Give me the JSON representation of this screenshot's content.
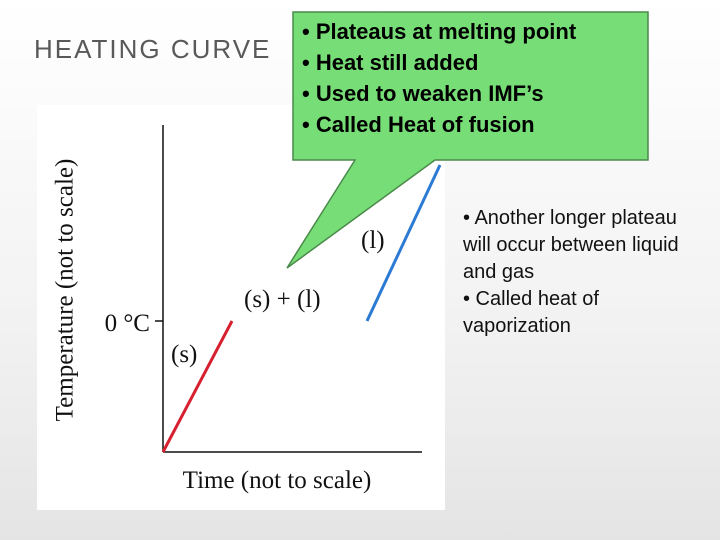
{
  "slide": {
    "title": "HEATING CURVE",
    "callout": [
      "• Plateaus at melting point",
      "• Heat still added",
      "• Used to weaken IMF’s",
      "• Called Heat of fusion"
    ],
    "notes": [
      "• Another longer plateau will occur between liquid and gas",
      "• Called heat of vaporization"
    ],
    "diagram": {
      "y_label": "Temperature (not to scale)",
      "x_label": "Time (not to scale)",
      "tick_label": "0 °C",
      "phase_labels": [
        "(s)",
        "(s) + (l)",
        "(l)"
      ]
    }
  }
}
